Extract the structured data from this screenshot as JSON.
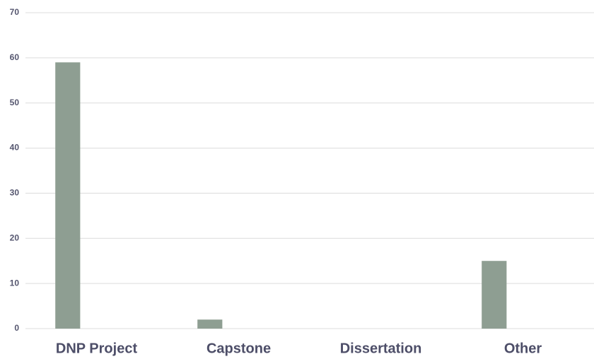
{
  "chart_data": {
    "type": "bar",
    "categories": [
      "DNP Project",
      "Capstone",
      "Dissertation",
      "Other"
    ],
    "values": [
      59,
      2,
      0,
      15
    ],
    "color": "#8e9e92",
    "ylim": [
      0,
      70
    ],
    "yticks": [
      0,
      10,
      20,
      30,
      40,
      50,
      60,
      70
    ],
    "grid": true
  }
}
